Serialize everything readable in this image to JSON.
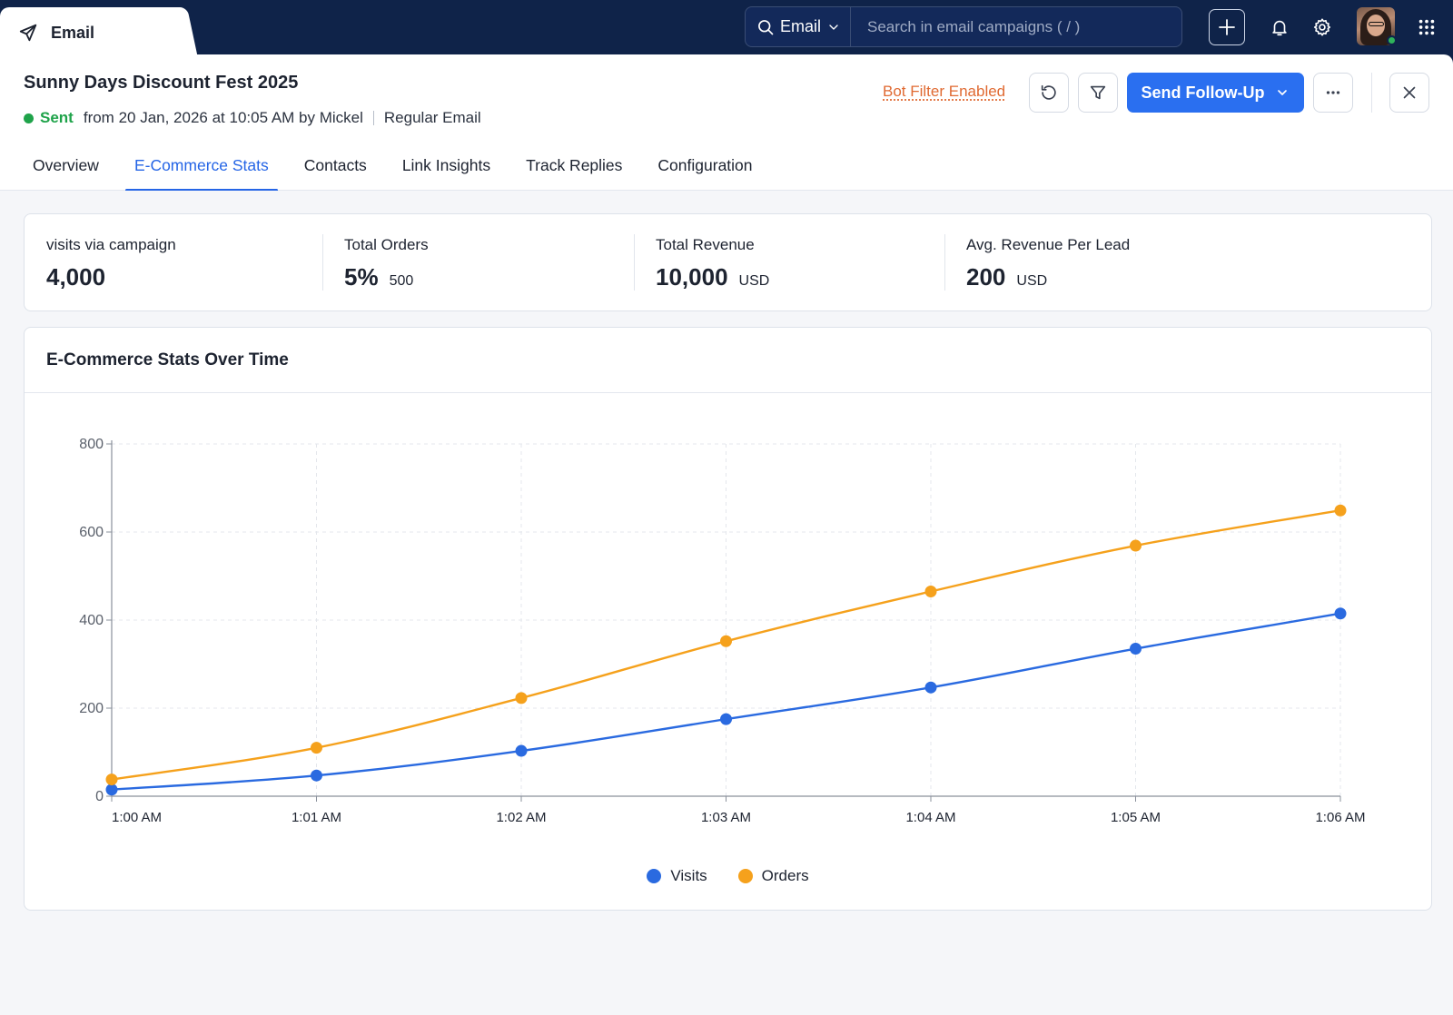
{
  "app": {
    "tab_label": "Email",
    "tab_icon": "paper-plane-icon"
  },
  "topbar": {
    "search_scope": "Email",
    "search_placeholder": "Search in email campaigns ( / )"
  },
  "campaign": {
    "title": "Sunny Days Discount Fest 2025",
    "status": "Sent",
    "sent_info": "from 20 Jan, 2026 at 10:05 AM by Mickel",
    "type": "Regular Email"
  },
  "actions": {
    "bot_filter": "Bot Filter Enabled",
    "send_follow_up": "Send Follow-Up"
  },
  "tabs": [
    {
      "label": "Overview",
      "active": false
    },
    {
      "label": "E-Commerce Stats",
      "active": true
    },
    {
      "label": "Contacts",
      "active": false
    },
    {
      "label": "Link Insights",
      "active": false
    },
    {
      "label": "Track Replies",
      "active": false
    },
    {
      "label": "Configuration",
      "active": false
    }
  ],
  "stats": [
    {
      "label": "visits via campaign",
      "value": "4,000",
      "sub": ""
    },
    {
      "label": "Total Orders",
      "value": "5%",
      "sub": "500"
    },
    {
      "label": "Total Revenue",
      "value": "10,000",
      "sub": "USD"
    },
    {
      "label": "Avg. Revenue Per Lead",
      "value": "200",
      "sub": "USD"
    }
  ],
  "chart_card": {
    "title": "E-Commerce Stats Over Time"
  },
  "colors": {
    "accent": "#2a6ff0",
    "visits": "#2a6ae0",
    "orders": "#f5a11c",
    "sent": "#1fa34a",
    "bot_filter": "#e06a32",
    "topbar": "#0f2349"
  },
  "chart_data": {
    "type": "line",
    "title": "E-Commerce Stats Over Time",
    "categories": [
      "1:00 AM",
      "1:01 AM",
      "1:02 AM",
      "1:03 AM",
      "1:04 AM",
      "1:05 AM",
      "1:06 AM"
    ],
    "series": [
      {
        "name": "Visits",
        "values": [
          15,
          47,
          103,
          175,
          247,
          335,
          415
        ]
      },
      {
        "name": "Orders",
        "values": [
          38,
          110,
          223,
          352,
          465,
          569,
          649
        ]
      }
    ],
    "ylim": [
      0,
      800
    ],
    "yticks": [
      0,
      200,
      400,
      600,
      800
    ],
    "grid": true,
    "legend": "bottom-center",
    "xlabel": "",
    "ylabel": ""
  }
}
